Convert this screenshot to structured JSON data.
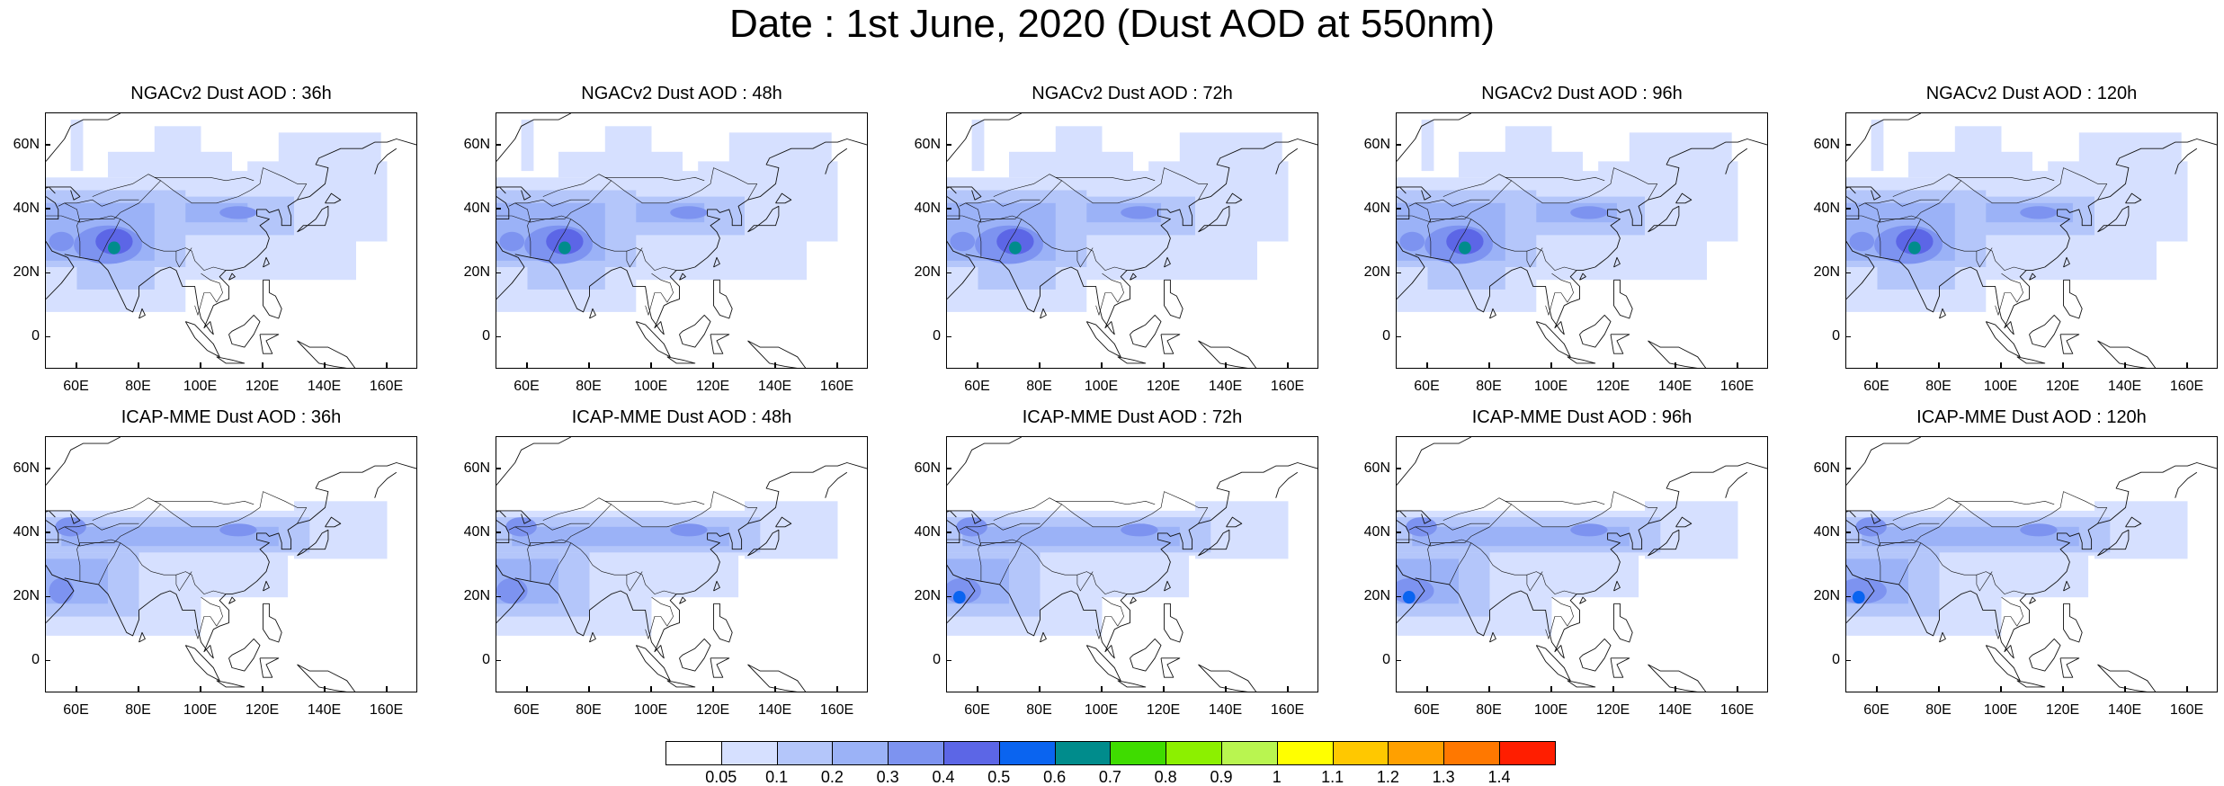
{
  "title": "Date : 1st June, 2020 (Dust AOD at 550nm)",
  "extent": {
    "lon_min": 50,
    "lon_max": 170,
    "lat_min": -10,
    "lat_max": 70
  },
  "lat_ticks": [
    {
      "value": 60,
      "label": "60N"
    },
    {
      "value": 40,
      "label": "40N"
    },
    {
      "value": 20,
      "label": "20N"
    },
    {
      "value": 0,
      "label": "0"
    }
  ],
  "lon_ticks": [
    {
      "value": 60,
      "label": "60E"
    },
    {
      "value": 80,
      "label": "80E"
    },
    {
      "value": 100,
      "label": "100E"
    },
    {
      "value": 120,
      "label": "120E"
    },
    {
      "value": 140,
      "label": "140E"
    },
    {
      "value": 160,
      "label": "160E"
    }
  ],
  "panels": [
    {
      "title": "NGACv2 Dust AOD : 36h",
      "model": "NGACv2",
      "lead": "36h"
    },
    {
      "title": "NGACv2 Dust AOD : 48h",
      "model": "NGACv2",
      "lead": "48h"
    },
    {
      "title": "NGACv2 Dust AOD : 72h",
      "model": "NGACv2",
      "lead": "72h"
    },
    {
      "title": "NGACv2 Dust AOD : 96h",
      "model": "NGACv2",
      "lead": "96h"
    },
    {
      "title": "NGACv2 Dust AOD : 120h",
      "model": "NGACv2",
      "lead": "120h"
    },
    {
      "title": "ICAP-MME Dust AOD : 36h",
      "model": "ICAP-MME",
      "lead": "36h"
    },
    {
      "title": "ICAP-MME Dust AOD : 48h",
      "model": "ICAP-MME",
      "lead": "48h"
    },
    {
      "title": "ICAP-MME Dust AOD : 72h",
      "model": "ICAP-MME",
      "lead": "72h"
    },
    {
      "title": "ICAP-MME Dust AOD : 96h",
      "model": "ICAP-MME",
      "lead": "96h"
    },
    {
      "title": "ICAP-MME Dust AOD : 120h",
      "model": "ICAP-MME",
      "lead": "120h"
    }
  ],
  "colorbar": {
    "colors": [
      "#ffffff",
      "#d6e0ff",
      "#b4c6fa",
      "#9bb2f7",
      "#7d93f0",
      "#5c66e6",
      "#0a64f0",
      "#008c8c",
      "#3fdc00",
      "#8cf000",
      "#b9f550",
      "#ffff00",
      "#ffc800",
      "#ffa000",
      "#ff7800",
      "#ff1e00"
    ],
    "labels": [
      "0.05",
      "0.1",
      "0.2",
      "0.3",
      "0.4",
      "0.5",
      "0.6",
      "0.7",
      "0.8",
      "0.9",
      "1",
      "1.1",
      "1.2",
      "1.3",
      "1.4"
    ]
  }
}
